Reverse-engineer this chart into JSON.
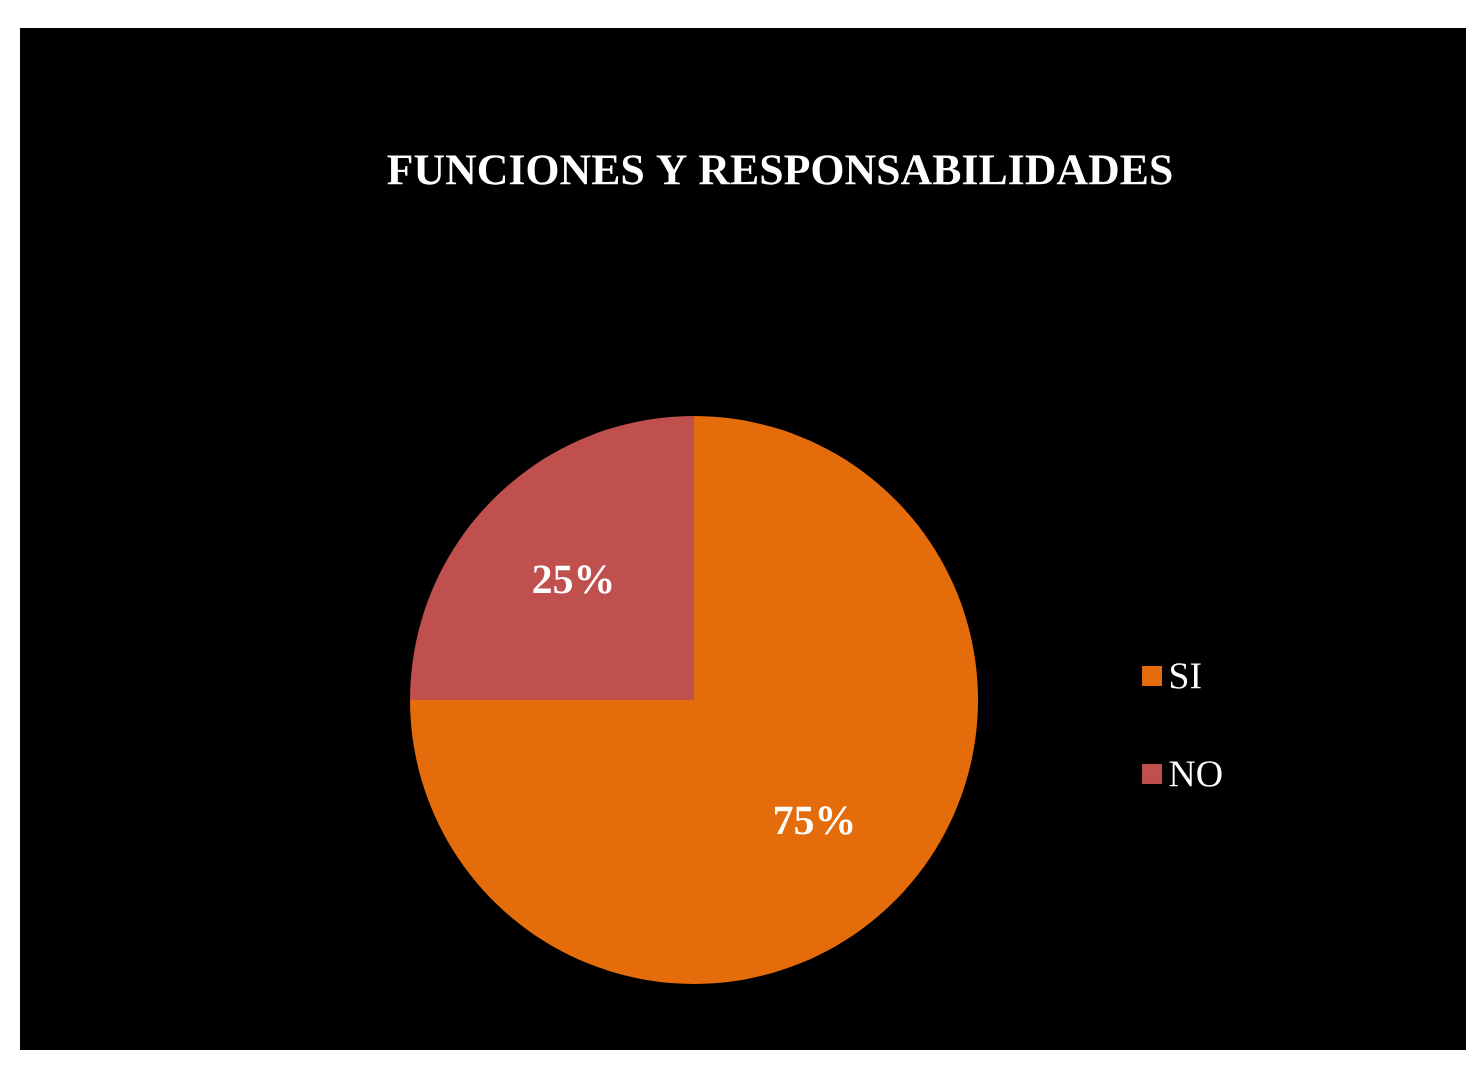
{
  "chart_data": {
    "type": "pie",
    "title": "FUNCIONES Y RESPONSABILIDADES",
    "categories": [
      "SI",
      "NO"
    ],
    "values": [
      75,
      25
    ],
    "colors": [
      "#e46c0a",
      "#c0504d"
    ],
    "value_labels": [
      "75%",
      "25%"
    ],
    "legend": "right"
  }
}
